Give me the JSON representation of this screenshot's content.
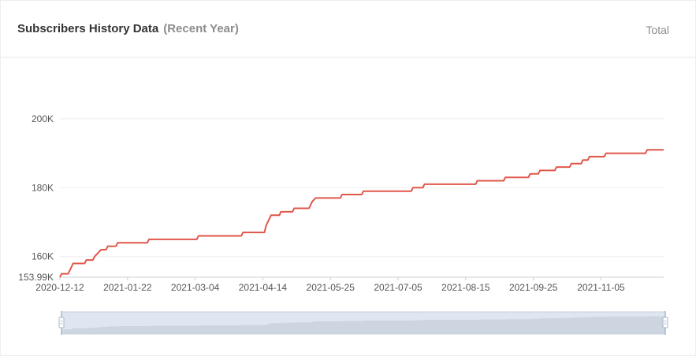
{
  "header": {
    "title": "Subscribers History Data",
    "subtitle": "(Recent Year)",
    "mode_label": "Total"
  },
  "colors": {
    "line": "#e0574a",
    "grid": "#eeeeee",
    "slider_fill": "#dfe6f1",
    "slider_border": "#c6d0de",
    "slider_area": "#c4cdda"
  },
  "chart_data": {
    "type": "line",
    "title": "Subscribers History Data",
    "subtitle": "(Recent Year)",
    "xlabel": "",
    "ylabel": "",
    "ylim": [
      153990,
      205000
    ],
    "xlim": [
      "2020-12-12",
      "2021-12-13"
    ],
    "y_ticks": [
      {
        "value": 153990,
        "label": "153.99K"
      },
      {
        "value": 160000,
        "label": "160K"
      },
      {
        "value": 180000,
        "label": "180K"
      },
      {
        "value": 200000,
        "label": "200K"
      }
    ],
    "x_ticks": [
      "2020-12-12",
      "2021-01-22",
      "2021-03-04",
      "2021-04-14",
      "2021-05-25",
      "2021-07-05",
      "2021-08-15",
      "2021-09-25",
      "2021-11-05"
    ],
    "grid": true,
    "series": [
      {
        "points": [
          [
            "2020-12-12",
            154000
          ],
          [
            "2020-12-13",
            155000
          ],
          [
            "2020-12-17",
            155000
          ],
          [
            "2020-12-18",
            156000
          ],
          [
            "2020-12-19",
            157000
          ],
          [
            "2020-12-20",
            158000
          ],
          [
            "2020-12-27",
            158000
          ],
          [
            "2020-12-28",
            159000
          ],
          [
            "2021-01-01",
            159000
          ],
          [
            "2021-01-02",
            160000
          ],
          [
            "2021-01-04",
            161000
          ],
          [
            "2021-01-06",
            162000
          ],
          [
            "2021-01-09",
            162000
          ],
          [
            "2021-01-10",
            163000
          ],
          [
            "2021-01-15",
            163000
          ],
          [
            "2021-01-16",
            164000
          ],
          [
            "2021-02-03",
            164000
          ],
          [
            "2021-02-04",
            165000
          ],
          [
            "2021-03-05",
            165000
          ],
          [
            "2021-03-06",
            166000
          ],
          [
            "2021-04-01",
            166000
          ],
          [
            "2021-04-02",
            167000
          ],
          [
            "2021-04-15",
            167000
          ],
          [
            "2021-04-16",
            169000
          ],
          [
            "2021-04-17",
            170000
          ],
          [
            "2021-04-18",
            171000
          ],
          [
            "2021-04-19",
            172000
          ],
          [
            "2021-04-24",
            172000
          ],
          [
            "2021-04-25",
            173000
          ],
          [
            "2021-05-02",
            173000
          ],
          [
            "2021-05-03",
            174000
          ],
          [
            "2021-05-12",
            174000
          ],
          [
            "2021-05-13",
            175000
          ],
          [
            "2021-05-14",
            176000
          ],
          [
            "2021-05-16",
            177000
          ],
          [
            "2021-05-31",
            177000
          ],
          [
            "2021-06-01",
            178000
          ],
          [
            "2021-06-13",
            178000
          ],
          [
            "2021-06-14",
            179000
          ],
          [
            "2021-07-13",
            179000
          ],
          [
            "2021-07-14",
            180000
          ],
          [
            "2021-07-20",
            180000
          ],
          [
            "2021-07-21",
            181000
          ],
          [
            "2021-08-21",
            181000
          ],
          [
            "2021-08-22",
            182000
          ],
          [
            "2021-09-07",
            182000
          ],
          [
            "2021-09-08",
            183000
          ],
          [
            "2021-09-22",
            183000
          ],
          [
            "2021-09-23",
            184000
          ],
          [
            "2021-09-28",
            184000
          ],
          [
            "2021-09-29",
            185000
          ],
          [
            "2021-10-08",
            185000
          ],
          [
            "2021-10-09",
            186000
          ],
          [
            "2021-10-17",
            186000
          ],
          [
            "2021-10-18",
            187000
          ],
          [
            "2021-10-24",
            187000
          ],
          [
            "2021-10-25",
            188000
          ],
          [
            "2021-10-28",
            188000
          ],
          [
            "2021-10-29",
            189000
          ],
          [
            "2021-11-07",
            189000
          ],
          [
            "2021-11-08",
            190000
          ],
          [
            "2021-12-02",
            190000
          ],
          [
            "2021-12-03",
            191000
          ],
          [
            "2021-12-13",
            191000
          ]
        ]
      }
    ],
    "data_zoom": {
      "start_percent": 0,
      "end_percent": 100
    }
  }
}
